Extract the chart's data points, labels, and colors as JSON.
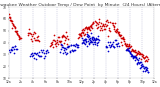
{
  "title": "Milwaukee Weather Outdoor Temp / Dew Point  by Minute  (24 Hours) (Alternate)",
  "title_fontsize": 3.2,
  "bg_color": "#ffffff",
  "plot_bg_color": "#ffffff",
  "grid_color": "#aaaacc",
  "temp_color": "#cc0000",
  "dew_color": "#0000cc",
  "ylim": [
    10,
    70
  ],
  "xlim": [
    0,
    1440
  ],
  "num_vert_lines": 12,
  "tick_color": "#333333",
  "tick_fontsize": 2.2,
  "marker_size": 1.5,
  "seed": 99
}
